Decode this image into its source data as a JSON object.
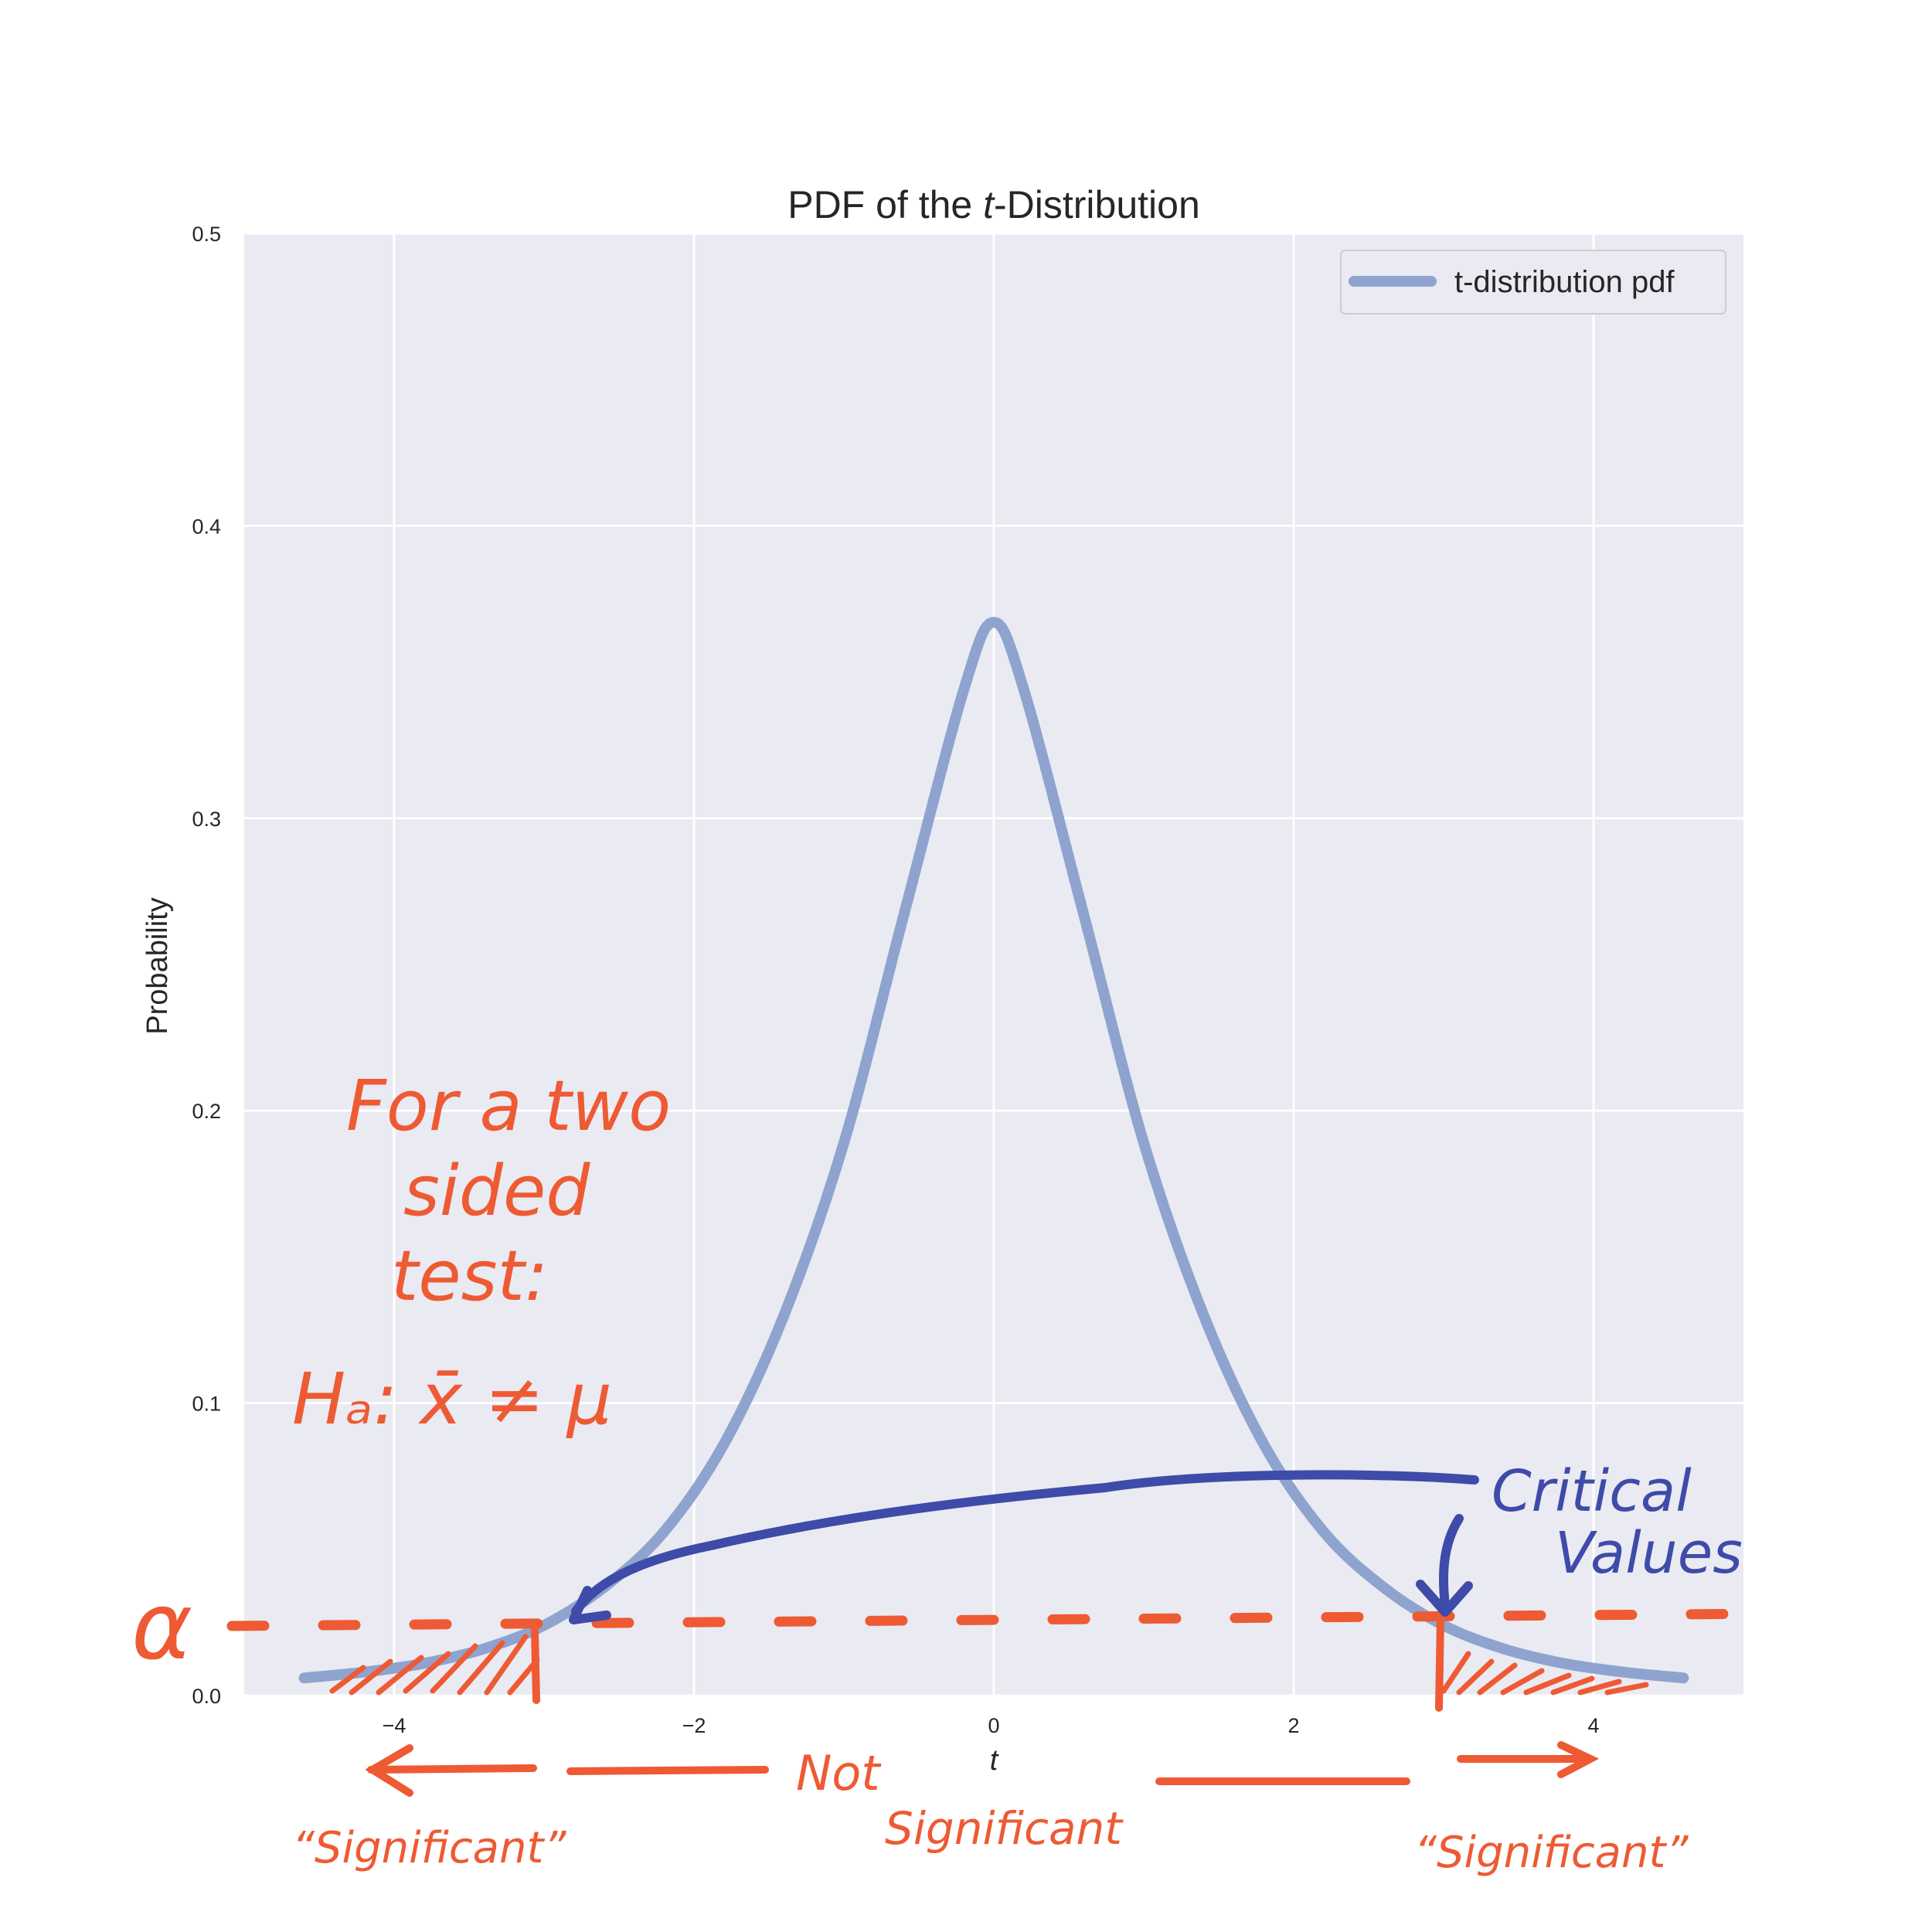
{
  "chart_data": {
    "type": "line",
    "title_prefix": "PDF of the ",
    "title_italic": "t",
    "title_suffix": "-Distribution",
    "xlabel": "t",
    "ylabel": "Probability",
    "xlim": [
      -5,
      5
    ],
    "ylim": [
      0,
      0.5
    ],
    "x_ticks": [
      -4,
      -2,
      0,
      2,
      4
    ],
    "x_tick_labels": [
      "−4",
      "−2",
      "0",
      "2",
      "4"
    ],
    "y_ticks": [
      0.0,
      0.1,
      0.2,
      0.3,
      0.4,
      0.5
    ],
    "y_tick_labels": [
      "0.0",
      "0.1",
      "0.2",
      "0.3",
      "0.4",
      "0.5"
    ],
    "grid": true,
    "legend_position": "top-right",
    "series": [
      {
        "name": "t-distribution pdf",
        "color": "#8fa3cf",
        "x": [
          -4.6,
          -4.2,
          -3.8,
          -3.4,
          -3.0,
          -2.6,
          -2.2,
          -1.8,
          -1.4,
          -1.0,
          -0.6,
          -0.2,
          0.0,
          0.2,
          0.6,
          1.0,
          1.4,
          1.8,
          2.2,
          2.6,
          3.0,
          3.4,
          3.8,
          4.2,
          4.6
        ],
        "y": [
          0.006,
          0.008,
          0.011,
          0.016,
          0.024,
          0.037,
          0.056,
          0.086,
          0.13,
          0.189,
          0.267,
          0.344,
          0.367,
          0.344,
          0.267,
          0.189,
          0.13,
          0.086,
          0.056,
          0.037,
          0.024,
          0.016,
          0.011,
          0.008,
          0.006
        ]
      }
    ],
    "annotations": {
      "alpha_level": 0.023,
      "critical_values": [
        -3.0,
        3.0
      ]
    }
  },
  "annotations_text": {
    "note_line1": "For a two",
    "note_line2": "sided",
    "note_line3": "test:",
    "hypothesis": "Hₐ: x̄ ≠ μ",
    "alpha": "α",
    "critical_line1": "Critical",
    "critical_line2": "Values",
    "not_significant_line1": "Not",
    "not_significant_line2": "Significant",
    "significant_left": "“Significant”",
    "significant_right": "“Significant”"
  },
  "colors": {
    "axes_bg": "#eaeaf2",
    "grid": "#ffffff",
    "curve": "#8fa3cf",
    "ink_orange": "#ee5a33",
    "ink_blue": "#3f4ba8"
  }
}
